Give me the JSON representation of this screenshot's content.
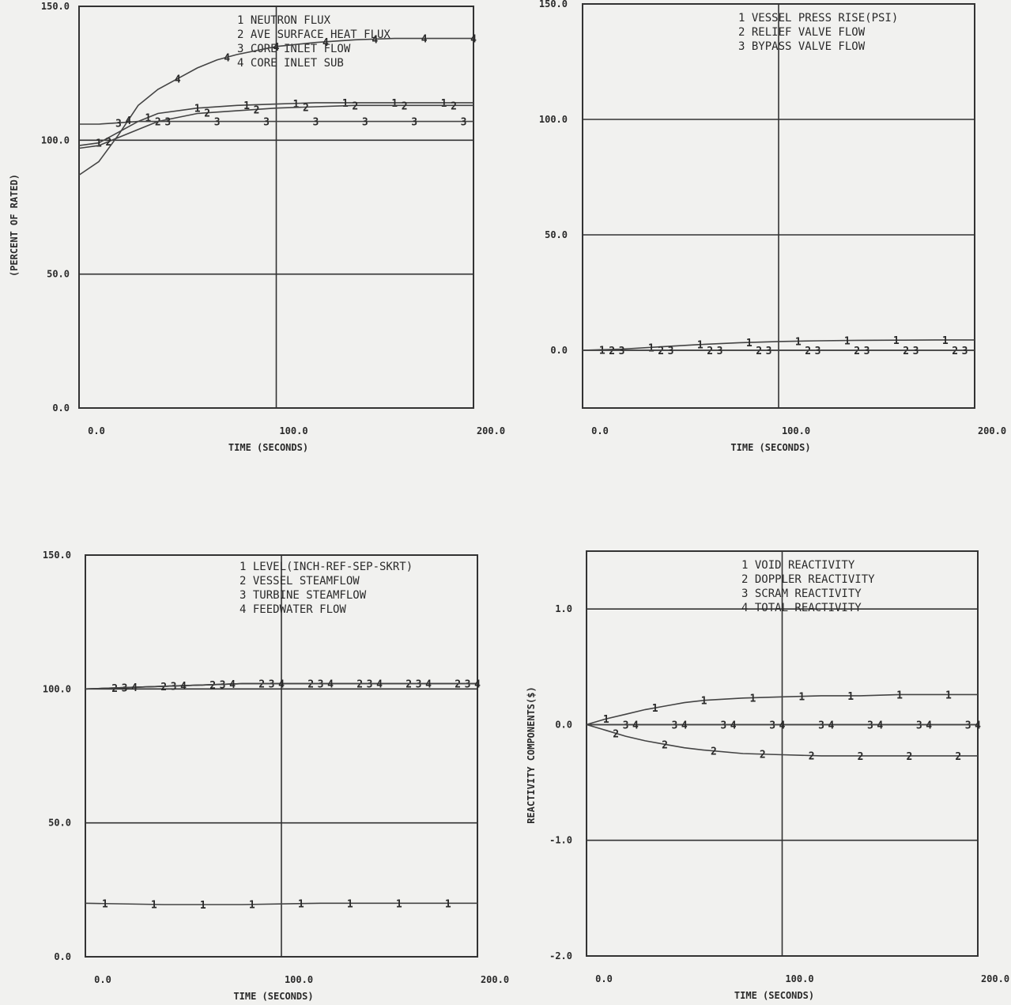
{
  "chart_data": [
    {
      "type": "line",
      "legend": [
        "1 NEUTRON FLUX",
        "2 AVE SURFACE HEAT FLUX",
        "3 CORE INLET FLOW",
        "4 CORE INLET SUB"
      ],
      "xlabel": "TIME (SECONDS)",
      "ylabel": "(PERCENT OF RATED)",
      "xlim": [
        0,
        200
      ],
      "ylim": [
        0,
        150
      ],
      "x_ticks": [
        "0.0",
        "100.0",
        "200.0"
      ],
      "y_ticks": [
        "0.0",
        "50.0",
        "100.0",
        "150.0"
      ],
      "grid": true,
      "series": [
        {
          "name": "1",
          "x": [
            0,
            10,
            20,
            30,
            40,
            60,
            80,
            100,
            120,
            140,
            160,
            180,
            200
          ],
          "y": [
            98,
            99,
            103,
            107,
            110,
            112,
            113,
            113.5,
            114,
            114,
            114,
            114,
            114
          ]
        },
        {
          "name": "2",
          "x": [
            0,
            10,
            20,
            30,
            40,
            60,
            80,
            100,
            120,
            140,
            160,
            180,
            200
          ],
          "y": [
            97,
            98,
            101,
            104,
            107,
            110,
            111,
            112,
            112.5,
            113,
            113,
            113,
            113
          ]
        },
        {
          "name": "3",
          "x": [
            0,
            10,
            20,
            30,
            40,
            60,
            80,
            100,
            120,
            140,
            160,
            180,
            200
          ],
          "y": [
            106,
            106,
            106.5,
            107,
            107,
            107,
            107,
            107,
            107,
            107,
            107,
            107,
            107
          ]
        },
        {
          "name": "4",
          "x": [
            0,
            10,
            20,
            30,
            40,
            50,
            60,
            70,
            80,
            100,
            120,
            140,
            160,
            180,
            200
          ],
          "y": [
            87,
            92,
            102,
            113,
            119,
            123,
            127,
            130,
            132,
            135,
            136.5,
            137.5,
            138,
            138,
            138
          ]
        }
      ]
    },
    {
      "type": "line",
      "legend": [
        "1 VESSEL PRESS RISE(PSI)",
        "2 RELIEF VALVE FLOW",
        "3 BYPASS VALVE FLOW"
      ],
      "xlabel": "TIME (SECONDS)",
      "ylabel": "",
      "xlim": [
        0,
        200
      ],
      "ylim": [
        -25,
        150
      ],
      "x_ticks": [
        "0.0",
        "100.0",
        "200.0"
      ],
      "y_ticks": [
        "0.0",
        "50.0",
        "100.0",
        "150.0"
      ],
      "grid": true,
      "series": [
        {
          "name": "1",
          "x": [
            0,
            20,
            40,
            60,
            80,
            100,
            120,
            140,
            160,
            180,
            200
          ],
          "y": [
            0,
            0.5,
            1.5,
            2.5,
            3.3,
            3.8,
            4.1,
            4.3,
            4.4,
            4.5,
            4.5
          ]
        },
        {
          "name": "2",
          "x": [
            0,
            200
          ],
          "y": [
            0,
            0
          ]
        },
        {
          "name": "3",
          "x": [
            0,
            200
          ],
          "y": [
            0,
            0
          ]
        }
      ]
    },
    {
      "type": "line",
      "legend": [
        "1 LEVEL(INCH-REF-SEP-SKRT)",
        "2 VESSEL STEAMFLOW",
        "3 TURBINE STEAMFLOW",
        "4 FEEDWATER FLOW"
      ],
      "xlabel": "TIME (SECONDS)",
      "ylabel": "",
      "xlim": [
        0,
        200
      ],
      "ylim": [
        0,
        150
      ],
      "x_ticks": [
        "0.0",
        "100.0",
        "200.0"
      ],
      "y_ticks": [
        "0.0",
        "50.0",
        "100.0",
        "150.0"
      ],
      "grid": true,
      "series": [
        {
          "name": "1",
          "x": [
            0,
            40,
            80,
            120,
            160,
            200
          ],
          "y": [
            20,
            19.5,
            19.5,
            20,
            20,
            20
          ]
        },
        {
          "name": "2",
          "x": [
            0,
            20,
            40,
            60,
            80,
            100,
            120,
            140,
            160,
            180,
            200
          ],
          "y": [
            100,
            100.5,
            101,
            101.5,
            102,
            102,
            102,
            102,
            102,
            102,
            102
          ]
        },
        {
          "name": "3",
          "x": [
            0,
            20,
            40,
            60,
            80,
            100,
            120,
            140,
            160,
            180,
            200
          ],
          "y": [
            100,
            100.5,
            101,
            101.5,
            102,
            102,
            102,
            102,
            102,
            102,
            102
          ]
        },
        {
          "name": "4",
          "x": [
            0,
            20,
            40,
            60,
            80,
            100,
            120,
            140,
            160,
            180,
            200
          ],
          "y": [
            100,
            100.5,
            101,
            101.5,
            102,
            102,
            102,
            102,
            102,
            102,
            102
          ]
        }
      ]
    },
    {
      "type": "line",
      "legend": [
        "1 VOID REACTIVITY",
        "2 DOPPLER REACTIVITY",
        "3 SCRAM REACTIVITY",
        "4 TOTAL REACTIVITY"
      ],
      "xlabel": "TIME (SECONDS)",
      "ylabel": "REACTIVITY COMPONENTS($)",
      "xlim": [
        0,
        200
      ],
      "ylim": [
        -2,
        1.5
      ],
      "x_ticks": [
        "0.0",
        "100.0",
        "200.0"
      ],
      "y_ticks": [
        "-2.0",
        "-1.0",
        "0.0",
        "1.0"
      ],
      "grid": true,
      "series": [
        {
          "name": "1",
          "x": [
            0,
            10,
            20,
            30,
            40,
            50,
            60,
            80,
            100,
            120,
            140,
            160,
            180,
            200
          ],
          "y": [
            0,
            0.05,
            0.09,
            0.13,
            0.16,
            0.19,
            0.21,
            0.23,
            0.24,
            0.25,
            0.25,
            0.26,
            0.26,
            0.26
          ]
        },
        {
          "name": "2",
          "x": [
            0,
            10,
            20,
            30,
            40,
            50,
            60,
            80,
            100,
            120,
            140,
            160,
            180,
            200
          ],
          "y": [
            0,
            -0.05,
            -0.1,
            -0.14,
            -0.17,
            -0.2,
            -0.22,
            -0.25,
            -0.26,
            -0.27,
            -0.27,
            -0.27,
            -0.27,
            -0.27
          ]
        },
        {
          "name": "3",
          "x": [
            0,
            200
          ],
          "y": [
            0,
            0
          ]
        },
        {
          "name": "4",
          "x": [
            0,
            200
          ],
          "y": [
            0,
            0
          ]
        }
      ]
    }
  ]
}
